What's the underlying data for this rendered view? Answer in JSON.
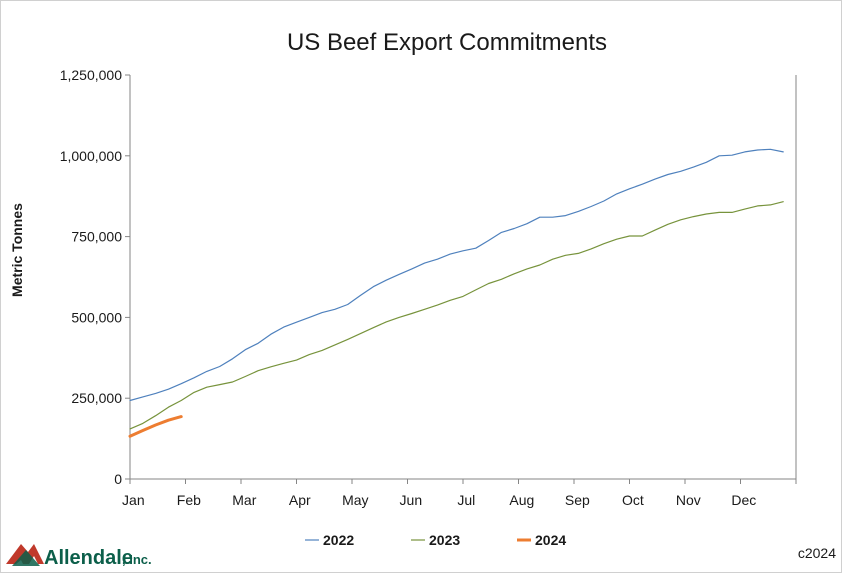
{
  "chart_data": {
    "type": "line",
    "title": "US Beef Export Commitments",
    "ylabel": "Metric Tonnes",
    "xlabel": "",
    "ylim": [
      0,
      1250000
    ],
    "yticks": [
      0,
      250000,
      500000,
      750000,
      1000000,
      1250000
    ],
    "ytick_labels": [
      "0",
      "250,000",
      "500,000",
      "750,000",
      "1,000,000",
      "1,250,000"
    ],
    "x_unit": "week",
    "xlim": [
      1,
      53
    ],
    "months": [
      "Jan",
      "Feb",
      "Mar",
      "Apr",
      "May",
      "Jun",
      "Jul",
      "Aug",
      "Sep",
      "Oct",
      "Nov",
      "Dec"
    ],
    "grid": false,
    "legend_position": "bottom",
    "series": [
      {
        "name": "2022",
        "color": "#4f81bd",
        "values": [
          [
            1,
            243000
          ],
          [
            2,
            254000
          ],
          [
            3,
            265000
          ],
          [
            4,
            278000
          ],
          [
            5,
            295000
          ],
          [
            6,
            313000
          ],
          [
            7,
            333000
          ],
          [
            8,
            348000
          ],
          [
            9,
            372000
          ],
          [
            10,
            400000
          ],
          [
            11,
            420000
          ],
          [
            12,
            448000
          ],
          [
            13,
            470000
          ],
          [
            14,
            485000
          ],
          [
            15,
            500000
          ],
          [
            16,
            515000
          ],
          [
            17,
            525000
          ],
          [
            18,
            540000
          ],
          [
            19,
            568000
          ],
          [
            20,
            595000
          ],
          [
            21,
            615000
          ],
          [
            22,
            633000
          ],
          [
            23,
            650000
          ],
          [
            24,
            668000
          ],
          [
            25,
            680000
          ],
          [
            26,
            696000
          ],
          [
            27,
            706000
          ],
          [
            28,
            714000
          ],
          [
            29,
            738000
          ],
          [
            30,
            763000
          ],
          [
            31,
            775000
          ],
          [
            32,
            790000
          ],
          [
            33,
            810000
          ],
          [
            34,
            810000
          ],
          [
            35,
            815000
          ],
          [
            36,
            828000
          ],
          [
            37,
            843000
          ],
          [
            38,
            860000
          ],
          [
            39,
            882000
          ],
          [
            40,
            898000
          ],
          [
            41,
            912000
          ],
          [
            42,
            928000
          ],
          [
            43,
            942000
          ],
          [
            44,
            952000
          ],
          [
            45,
            965000
          ],
          [
            46,
            980000
          ],
          [
            47,
            1000000
          ],
          [
            48,
            1002000
          ],
          [
            49,
            1012000
          ],
          [
            50,
            1018000
          ],
          [
            51,
            1020000
          ],
          [
            52,
            1012000
          ]
        ]
      },
      {
        "name": "2023",
        "color": "#77933c",
        "values": [
          [
            1,
            155000
          ],
          [
            2,
            172000
          ],
          [
            3,
            196000
          ],
          [
            4,
            222000
          ],
          [
            5,
            243000
          ],
          [
            6,
            268000
          ],
          [
            7,
            284000
          ],
          [
            8,
            292000
          ],
          [
            9,
            300000
          ],
          [
            10,
            317000
          ],
          [
            11,
            335000
          ],
          [
            12,
            347000
          ],
          [
            13,
            358000
          ],
          [
            14,
            368000
          ],
          [
            15,
            385000
          ],
          [
            16,
            398000
          ],
          [
            17,
            415000
          ],
          [
            18,
            432000
          ],
          [
            19,
            450000
          ],
          [
            20,
            468000
          ],
          [
            21,
            486000
          ],
          [
            22,
            500000
          ],
          [
            23,
            512000
          ],
          [
            24,
            525000
          ],
          [
            25,
            538000
          ],
          [
            26,
            553000
          ],
          [
            27,
            565000
          ],
          [
            28,
            585000
          ],
          [
            29,
            605000
          ],
          [
            30,
            618000
          ],
          [
            31,
            635000
          ],
          [
            32,
            650000
          ],
          [
            33,
            662000
          ],
          [
            34,
            680000
          ],
          [
            35,
            692000
          ],
          [
            36,
            698000
          ],
          [
            37,
            712000
          ],
          [
            38,
            728000
          ],
          [
            39,
            742000
          ],
          [
            40,
            752000
          ],
          [
            41,
            752000
          ],
          [
            42,
            770000
          ],
          [
            43,
            788000
          ],
          [
            44,
            802000
          ],
          [
            45,
            812000
          ],
          [
            46,
            820000
          ],
          [
            47,
            825000
          ],
          [
            48,
            825000
          ],
          [
            49,
            835000
          ],
          [
            50,
            845000
          ],
          [
            51,
            848000
          ],
          [
            52,
            858000
          ]
        ]
      },
      {
        "name": "2024",
        "color": "#ed7d31",
        "values": [
          [
            1,
            132000
          ],
          [
            2,
            150000
          ],
          [
            3,
            167000
          ],
          [
            4,
            182000
          ],
          [
            5,
            193000
          ]
        ]
      }
    ]
  },
  "branding": {
    "logo_name": "Allendale",
    "logo_suffix": ", Inc.",
    "copyright": "c2024"
  }
}
